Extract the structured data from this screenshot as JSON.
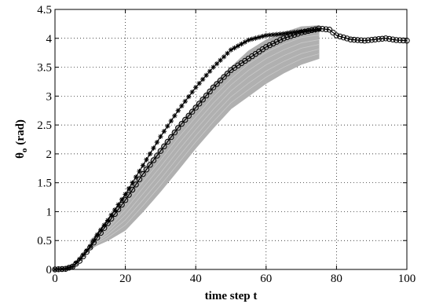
{
  "chart_data": {
    "type": "line",
    "title": "",
    "xlabel": "time step t",
    "ylabel": {
      "symbol": "θ",
      "subscript": "o",
      "unit": "(rad)"
    },
    "xlim": [
      0,
      100
    ],
    "ylim": [
      0,
      4.5
    ],
    "xticks": [
      0,
      20,
      40,
      60,
      80,
      100
    ],
    "yticks": [
      0,
      0.5,
      1,
      1.5,
      2,
      2.5,
      3,
      3.5,
      4,
      4.5
    ],
    "xtick_labels": [
      "0",
      "20",
      "40",
      "60",
      "80",
      "100"
    ],
    "ytick_labels": [
      "0",
      "0.5",
      "1",
      "1.5",
      "2",
      "2.5",
      "3",
      "3.5",
      "4",
      "4.5"
    ],
    "grid": true,
    "grid_style": "dotted",
    "legend": "none",
    "band": {
      "color": "#b0b0b0",
      "x": [
        10,
        12,
        15,
        20,
        25,
        30,
        35,
        40,
        45,
        50,
        55,
        60,
        65,
        70,
        75
      ],
      "lower": [
        0.35,
        0.42,
        0.5,
        0.68,
        1.0,
        1.35,
        1.72,
        2.1,
        2.45,
        2.78,
        3.0,
        3.22,
        3.4,
        3.55,
        3.65
      ],
      "upper": [
        0.5,
        0.62,
        0.85,
        1.3,
        1.72,
        2.1,
        2.5,
        2.85,
        3.2,
        3.5,
        3.78,
        3.97,
        4.1,
        4.2,
        4.22
      ]
    },
    "series": [
      {
        "marker": "star",
        "color": "#000000",
        "x_start": 0,
        "x_end": 75,
        "points": [
          [
            0,
            0
          ],
          [
            3,
            0.01
          ],
          [
            5,
            0.05
          ],
          [
            7,
            0.18
          ],
          [
            10,
            0.4
          ],
          [
            12,
            0.6
          ],
          [
            15,
            0.85
          ],
          [
            20,
            1.3
          ],
          [
            25,
            1.8
          ],
          [
            30,
            2.3
          ],
          [
            35,
            2.75
          ],
          [
            40,
            3.15
          ],
          [
            45,
            3.5
          ],
          [
            50,
            3.8
          ],
          [
            55,
            3.97
          ],
          [
            60,
            4.05
          ],
          [
            65,
            4.08
          ],
          [
            70,
            4.12
          ],
          [
            75,
            4.15
          ]
        ]
      },
      {
        "marker": "circle",
        "color": "#000000",
        "x_start": 0,
        "x_end": 100,
        "points": [
          [
            0,
            0
          ],
          [
            3,
            0.01
          ],
          [
            5,
            0.05
          ],
          [
            7,
            0.15
          ],
          [
            10,
            0.38
          ],
          [
            12,
            0.55
          ],
          [
            15,
            0.8
          ],
          [
            20,
            1.2
          ],
          [
            25,
            1.65
          ],
          [
            30,
            2.05
          ],
          [
            35,
            2.45
          ],
          [
            40,
            2.8
          ],
          [
            45,
            3.15
          ],
          [
            50,
            3.45
          ],
          [
            55,
            3.65
          ],
          [
            60,
            3.85
          ],
          [
            65,
            4.0
          ],
          [
            70,
            4.1
          ],
          [
            75,
            4.17
          ],
          [
            78,
            4.15
          ],
          [
            80,
            4.05
          ],
          [
            84,
            3.98
          ],
          [
            88,
            3.96
          ],
          [
            91,
            3.98
          ],
          [
            94,
            4.0
          ],
          [
            97,
            3.97
          ],
          [
            100,
            3.96
          ]
        ]
      }
    ]
  }
}
